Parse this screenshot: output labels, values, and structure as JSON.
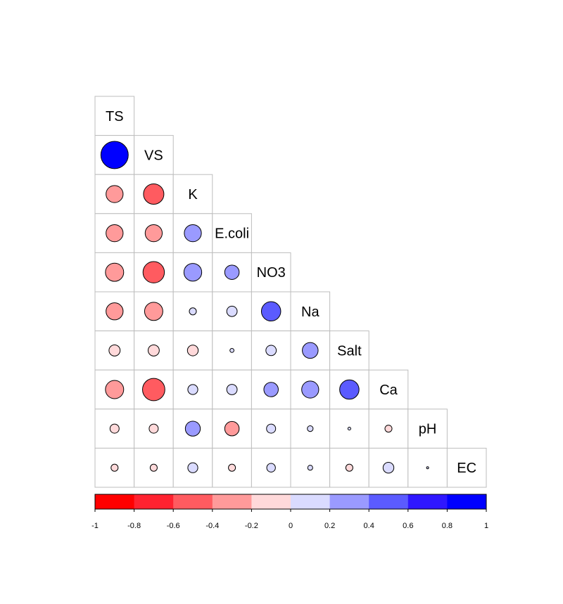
{
  "chart_data": {
    "type": "heatmap",
    "subtype": "correlogram-lower-circle",
    "variables": [
      "TS",
      "VS",
      "K",
      "E.coli",
      "NO3",
      "Na",
      "Salt",
      "Ca",
      "pH",
      "EC"
    ],
    "correlations": [
      {
        "row": "VS",
        "col": "TS",
        "value": 0.9
      },
      {
        "row": "K",
        "col": "TS",
        "value": -0.35
      },
      {
        "row": "K",
        "col": "VS",
        "value": -0.5
      },
      {
        "row": "E.coli",
        "col": "TS",
        "value": -0.35
      },
      {
        "row": "E.coli",
        "col": "VS",
        "value": -0.35
      },
      {
        "row": "E.coli",
        "col": "K",
        "value": 0.35
      },
      {
        "row": "NO3",
        "col": "TS",
        "value": -0.4
      },
      {
        "row": "NO3",
        "col": "VS",
        "value": -0.55
      },
      {
        "row": "NO3",
        "col": "K",
        "value": 0.38
      },
      {
        "row": "NO3",
        "col": "E.coli",
        "value": 0.25
      },
      {
        "row": "Na",
        "col": "TS",
        "value": -0.35
      },
      {
        "row": "Na",
        "col": "VS",
        "value": -0.4
      },
      {
        "row": "Na",
        "col": "K",
        "value": 0.06
      },
      {
        "row": "Na",
        "col": "E.coli",
        "value": 0.13
      },
      {
        "row": "Na",
        "col": "NO3",
        "value": 0.45
      },
      {
        "row": "Salt",
        "col": "TS",
        "value": -0.15
      },
      {
        "row": "Salt",
        "col": "VS",
        "value": -0.15
      },
      {
        "row": "Salt",
        "col": "K",
        "value": -0.14
      },
      {
        "row": "Salt",
        "col": "E.coli",
        "value": 0.02
      },
      {
        "row": "Salt",
        "col": "NO3",
        "value": 0.13
      },
      {
        "row": "Salt",
        "col": "Na",
        "value": 0.3
      },
      {
        "row": "Ca",
        "col": "TS",
        "value": -0.4
      },
      {
        "row": "Ca",
        "col": "VS",
        "value": -0.6
      },
      {
        "row": "Ca",
        "col": "K",
        "value": 0.12
      },
      {
        "row": "Ca",
        "col": "E.coli",
        "value": 0.13
      },
      {
        "row": "Ca",
        "col": "NO3",
        "value": 0.25
      },
      {
        "row": "Ca",
        "col": "Na",
        "value": 0.35
      },
      {
        "row": "Ca",
        "col": "Salt",
        "value": 0.45
      },
      {
        "row": "pH",
        "col": "TS",
        "value": -0.1
      },
      {
        "row": "pH",
        "col": "VS",
        "value": -0.1
      },
      {
        "row": "pH",
        "col": "K",
        "value": 0.27
      },
      {
        "row": "pH",
        "col": "E.coli",
        "value": -0.25
      },
      {
        "row": "pH",
        "col": "NO3",
        "value": 0.1
      },
      {
        "row": "pH",
        "col": "Na",
        "value": 0.04
      },
      {
        "row": "pH",
        "col": "Salt",
        "value": 0.01
      },
      {
        "row": "pH",
        "col": "Ca",
        "value": -0.06
      },
      {
        "row": "EC",
        "col": "TS",
        "value": -0.06
      },
      {
        "row": "EC",
        "col": "VS",
        "value": -0.06
      },
      {
        "row": "EC",
        "col": "K",
        "value": 0.12
      },
      {
        "row": "EC",
        "col": "E.coli",
        "value": -0.06
      },
      {
        "row": "EC",
        "col": "NO3",
        "value": 0.09
      },
      {
        "row": "EC",
        "col": "Na",
        "value": 0.03
      },
      {
        "row": "EC",
        "col": "Salt",
        "value": -0.06
      },
      {
        "row": "EC",
        "col": "Ca",
        "value": 0.14
      },
      {
        "row": "EC",
        "col": "pH",
        "value": 0.005
      }
    ],
    "colorbar": {
      "range": [
        -1,
        1
      ],
      "ticks": [
        "-1",
        "-0.8",
        "-0.6",
        "-0.4",
        "-0.2",
        "0",
        "0.2",
        "0.4",
        "0.6",
        "0.8",
        "1"
      ],
      "colors": [
        "#FF0000",
        "#FF2230",
        "#FF5B60",
        "#FF9A9A",
        "#FFD9DA",
        "#DADBFF",
        "#9A9AFF",
        "#5B5BFF",
        "#2F17FF",
        "#0000FF"
      ]
    },
    "grid": true,
    "legend_position": "bottom"
  }
}
